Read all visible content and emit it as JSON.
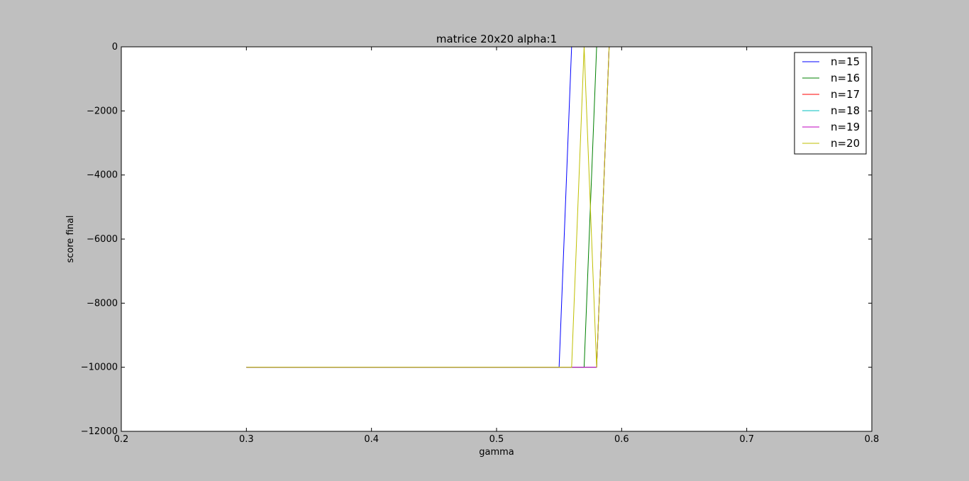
{
  "figure": {
    "background": "#bfbfbf"
  },
  "chart_data": {
    "type": "line",
    "title": "matrice 20x20 alpha:1",
    "xlabel": "gamma",
    "ylabel": "score final",
    "xlim": [
      0.2,
      0.8
    ],
    "ylim": [
      -12000,
      0
    ],
    "xticks": [
      0.2,
      0.3,
      0.4,
      0.5,
      0.6,
      0.7,
      0.8
    ],
    "xtick_labels": [
      "0.2",
      "0.3",
      "0.4",
      "0.5",
      "0.6",
      "0.7",
      "0.8"
    ],
    "yticks": [
      0,
      -2000,
      -4000,
      -6000,
      -8000,
      -10000,
      -12000
    ],
    "ytick_labels": [
      "0",
      "−2000",
      "−4000",
      "−6000",
      "−8000",
      "−10000",
      "−12000"
    ],
    "grid": false,
    "legend_position": "top-right",
    "series": [
      {
        "name": "n=15",
        "color": "#0000ff",
        "x": [
          0.3,
          0.31,
          0.32,
          0.33,
          0.34,
          0.35,
          0.36,
          0.37,
          0.38,
          0.39,
          0.4,
          0.41,
          0.42,
          0.43,
          0.44,
          0.45,
          0.46,
          0.47,
          0.48,
          0.49,
          0.5,
          0.51,
          0.52,
          0.53,
          0.54,
          0.55,
          0.56
        ],
        "y": [
          -10000,
          -10000,
          -10000,
          -10000,
          -10000,
          -10000,
          -10000,
          -10000,
          -10000,
          -10000,
          -10000,
          -10000,
          -10000,
          -10000,
          -10000,
          -10000,
          -10000,
          -10000,
          -10000,
          -10000,
          -10000,
          -10000,
          -10000,
          -10000,
          -10000,
          -10000,
          0
        ]
      },
      {
        "name": "n=16",
        "color": "#008000",
        "x": [
          0.3,
          0.31,
          0.32,
          0.33,
          0.34,
          0.35,
          0.36,
          0.37,
          0.38,
          0.39,
          0.4,
          0.41,
          0.42,
          0.43,
          0.44,
          0.45,
          0.46,
          0.47,
          0.48,
          0.49,
          0.5,
          0.51,
          0.52,
          0.53,
          0.54,
          0.55,
          0.56,
          0.57,
          0.58
        ],
        "y": [
          -10000,
          -10000,
          -10000,
          -10000,
          -10000,
          -10000,
          -10000,
          -10000,
          -10000,
          -10000,
          -10000,
          -10000,
          -10000,
          -10000,
          -10000,
          -10000,
          -10000,
          -10000,
          -10000,
          -10000,
          -10000,
          -10000,
          -10000,
          -10000,
          -10000,
          -10000,
          -10000,
          -10000,
          0
        ]
      },
      {
        "name": "n=17",
        "color": "#ff0000",
        "x": [
          0.3,
          0.31,
          0.32,
          0.33,
          0.34,
          0.35,
          0.36,
          0.37,
          0.38,
          0.39,
          0.4,
          0.41,
          0.42,
          0.43,
          0.44,
          0.45,
          0.46,
          0.47,
          0.48,
          0.49,
          0.5,
          0.51,
          0.52,
          0.53,
          0.54,
          0.55,
          0.56,
          0.57,
          0.58,
          0.59
        ],
        "y": [
          -10000,
          -10000,
          -10000,
          -10000,
          -10000,
          -10000,
          -10000,
          -10000,
          -10000,
          -10000,
          -10000,
          -10000,
          -10000,
          -10000,
          -10000,
          -10000,
          -10000,
          -10000,
          -10000,
          -10000,
          -10000,
          -10000,
          -10000,
          -10000,
          -10000,
          -10000,
          -10000,
          -10000,
          -10000,
          0
        ]
      },
      {
        "name": "n=18",
        "color": "#00bfbf",
        "x": [
          0.3,
          0.31,
          0.32,
          0.33,
          0.34,
          0.35,
          0.36,
          0.37,
          0.38,
          0.39,
          0.4,
          0.41,
          0.42,
          0.43,
          0.44,
          0.45,
          0.46,
          0.47,
          0.48,
          0.49,
          0.5,
          0.51,
          0.52,
          0.53,
          0.54,
          0.55,
          0.56,
          0.57,
          0.58,
          0.59
        ],
        "y": [
          -10000,
          -10000,
          -10000,
          -10000,
          -10000,
          -10000,
          -10000,
          -10000,
          -10000,
          -10000,
          -10000,
          -10000,
          -10000,
          -10000,
          -10000,
          -10000,
          -10000,
          -10000,
          -10000,
          -10000,
          -10000,
          -10000,
          -10000,
          -10000,
          -10000,
          -10000,
          -10000,
          -10000,
          -10000,
          0
        ]
      },
      {
        "name": "n=19",
        "color": "#bf00bf",
        "x": [
          0.3,
          0.31,
          0.32,
          0.33,
          0.34,
          0.35,
          0.36,
          0.37,
          0.38,
          0.39,
          0.4,
          0.41,
          0.42,
          0.43,
          0.44,
          0.45,
          0.46,
          0.47,
          0.48,
          0.49,
          0.5,
          0.51,
          0.52,
          0.53,
          0.54,
          0.55,
          0.56,
          0.57,
          0.58,
          0.59
        ],
        "y": [
          -10000,
          -10000,
          -10000,
          -10000,
          -10000,
          -10000,
          -10000,
          -10000,
          -10000,
          -10000,
          -10000,
          -10000,
          -10000,
          -10000,
          -10000,
          -10000,
          -10000,
          -10000,
          -10000,
          -10000,
          -10000,
          -10000,
          -10000,
          -10000,
          -10000,
          -10000,
          -10000,
          -10000,
          -10000,
          0
        ]
      },
      {
        "name": "n=20",
        "color": "#bfbf00",
        "x": [
          0.3,
          0.31,
          0.32,
          0.33,
          0.34,
          0.35,
          0.36,
          0.37,
          0.38,
          0.39,
          0.4,
          0.41,
          0.42,
          0.43,
          0.44,
          0.45,
          0.46,
          0.47,
          0.48,
          0.49,
          0.5,
          0.51,
          0.52,
          0.53,
          0.54,
          0.55,
          0.56,
          0.57,
          0.58,
          0.59
        ],
        "y": [
          -10000,
          -10000,
          -10000,
          -10000,
          -10000,
          -10000,
          -10000,
          -10000,
          -10000,
          -10000,
          -10000,
          -10000,
          -10000,
          -10000,
          -10000,
          -10000,
          -10000,
          -10000,
          -10000,
          -10000,
          -10000,
          -10000,
          -10000,
          -10000,
          -10000,
          -10000,
          -10000,
          0,
          -10000,
          0
        ]
      }
    ]
  }
}
